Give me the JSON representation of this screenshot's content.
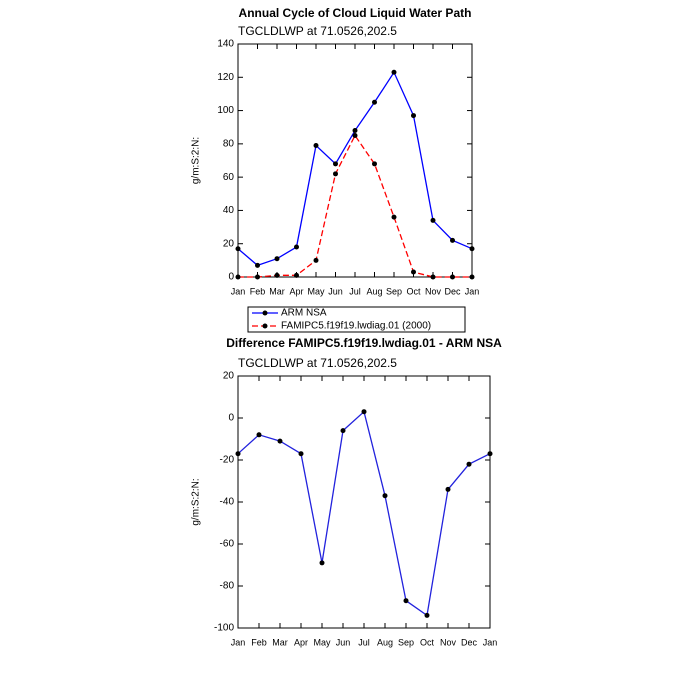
{
  "chart_data": [
    {
      "type": "line",
      "title": "Annual Cycle of Cloud Liquid Water Path",
      "subtitle": "TGCLDLWP  at 71.0526,202.5",
      "ylabel": "g/m:S:2:N:",
      "categories": [
        "Jan",
        "Feb",
        "Mar",
        "Apr",
        "May",
        "Jun",
        "Jul",
        "Aug",
        "Sep",
        "Oct",
        "Nov",
        "Dec",
        "Jan"
      ],
      "series": [
        {
          "name": "ARM NSA",
          "color": "#0000ff",
          "dashed": false,
          "values": [
            17,
            7,
            11,
            18,
            79,
            68,
            88,
            105,
            123,
            97,
            34,
            22,
            17
          ]
        },
        {
          "name": "FAMIPC5.f19f19.lwdiag.01 (2000)",
          "color": "#ff0000",
          "dashed": true,
          "values": [
            0,
            0,
            1,
            1,
            10,
            62,
            85,
            68,
            36,
            3,
            0,
            0,
            0
          ]
        }
      ],
      "ylim": [
        0,
        140
      ],
      "yticks": [
        0,
        20,
        40,
        60,
        80,
        100,
        120,
        140
      ],
      "legend": "bottom"
    },
    {
      "type": "line",
      "title": "Difference FAMIPC5.f19f19.lwdiag.01 - ARM NSA",
      "subtitle": "TGCLDLWP  at 71.0526,202.5",
      "ylabel": "g/m:S:2:N:",
      "categories": [
        "Jan",
        "Feb",
        "Mar",
        "Apr",
        "May",
        "Jun",
        "Jul",
        "Aug",
        "Sep",
        "Oct",
        "Nov",
        "Dec",
        "Jan"
      ],
      "series": [
        {
          "color": "#2222dd",
          "dashed": false,
          "values": [
            -17,
            -8,
            -11,
            -17,
            -69,
            -6,
            3,
            -37,
            -87,
            -94,
            -34,
            -22,
            -17
          ]
        }
      ],
      "ylim": [
        -100,
        20
      ],
      "yticks": [
        -100,
        -80,
        -60,
        -40,
        -20,
        0,
        20
      ]
    }
  ]
}
